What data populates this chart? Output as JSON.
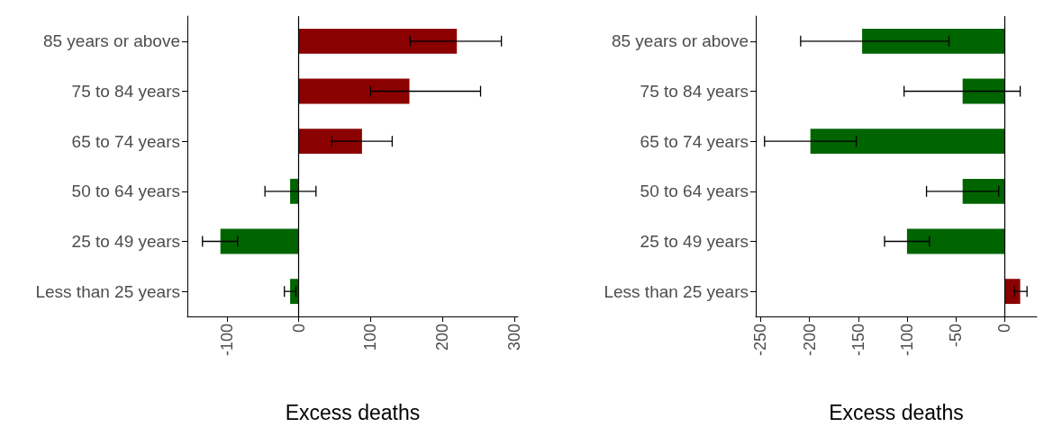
{
  "chart_data": [
    {
      "type": "bar",
      "orientation": "horizontal",
      "xlabel": "Excess deaths",
      "categories": [
        "85 years or above",
        "75 to 84 years",
        "65 to 74 years",
        "50 to 64 years",
        "25 to 49 years",
        "Less than 25 years"
      ],
      "values": [
        220,
        154,
        88,
        -12,
        -109,
        -12
      ],
      "colors": [
        "#8b0000",
        "#8b0000",
        "#8b0000",
        "#006400",
        "#006400",
        "#006400"
      ],
      "errors": [
        [
          155,
          282
        ],
        [
          100,
          253
        ],
        [
          46,
          130
        ],
        [
          -47,
          24
        ],
        [
          -134,
          -85
        ],
        [
          -20,
          -4
        ]
      ],
      "xlim": [
        -155,
        305
      ],
      "xticks": [
        -100,
        0,
        100,
        200,
        300
      ],
      "ref_lines": [
        {
          "axis": "x",
          "value": 0,
          "color": "#000000"
        }
      ],
      "grid": false
    },
    {
      "type": "bar",
      "orientation": "horizontal",
      "xlabel": "Excess deaths",
      "categories": [
        "85 years or above",
        "75 to 84 years",
        "65 to 74 years",
        "50 to 64 years",
        "25 to 49 years",
        "Less than 25 years"
      ],
      "values": [
        -146,
        -43,
        -199,
        -43,
        -100,
        16
      ],
      "colors": [
        "#006400",
        "#006400",
        "#006400",
        "#006400",
        "#006400",
        "#8b0000"
      ],
      "errors": [
        [
          -209,
          -57
        ],
        [
          -103,
          16
        ],
        [
          -246,
          -152
        ],
        [
          -80,
          -6
        ],
        [
          -123,
          -77
        ],
        [
          10,
          23
        ]
      ],
      "xlim": [
        -255,
        33
      ],
      "xticks": [
        -250,
        -200,
        -150,
        -100,
        -50,
        0
      ],
      "ref_lines": [
        {
          "axis": "x",
          "value": 0,
          "color": "#000000"
        }
      ],
      "grid": false
    }
  ]
}
